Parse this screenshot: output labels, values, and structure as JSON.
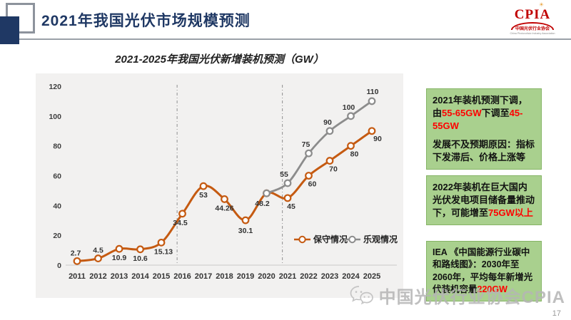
{
  "header": {
    "title": "2021年我国光伏市场规模预测",
    "logo": {
      "name": "CPIA",
      "cn": "中国光伏行业协会",
      "en": "China Photovoltaic Industry Association",
      "color": "#C00000"
    }
  },
  "chart_data": {
    "type": "line",
    "title": "2021-2025年我国光伏新增装机预测（GW）",
    "categories": [
      "2011",
      "2012",
      "2013",
      "2014",
      "2015",
      "2016",
      "2017",
      "2018",
      "2019",
      "2020",
      "2021",
      "2022",
      "2023",
      "2024",
      "2025"
    ],
    "series": [
      {
        "name": "保守情况",
        "color": "#C55A11",
        "values": [
          2.7,
          4.5,
          10.9,
          10.6,
          15.13,
          34.5,
          53,
          44.26,
          30.1,
          48.2,
          45,
          60,
          70,
          80,
          90
        ]
      },
      {
        "name": "乐观情况",
        "color": "#8C8C8C",
        "values": [
          null,
          null,
          null,
          null,
          null,
          null,
          null,
          null,
          null,
          48.2,
          55,
          75,
          90,
          100,
          110
        ]
      }
    ],
    "ylim": [
      0,
      120
    ],
    "yticks": [
      0,
      20,
      40,
      60,
      80,
      100,
      120
    ],
    "grid": false,
    "plot_bg": "#F2F1F0",
    "legend_position": "inside-bottom-right",
    "ref_lines_x": [
      2015.75,
      2020.75
    ],
    "marker": "open-circle"
  },
  "notes": [
    {
      "paragraphs": [
        [
          {
            "t": "2021年装机预测下调，由"
          },
          {
            "t": "55-65GW",
            "red": true
          },
          {
            "t": "下调至"
          },
          {
            "t": "45-55GW",
            "red": true
          }
        ],
        [
          {
            "t": "发展不及预期原因：指标下发滞后、价格上涨等"
          }
        ]
      ]
    },
    {
      "paragraphs": [
        [
          {
            "t": "2022年装机在巨大国内光伏发电项目储备量推动下，可能增至"
          },
          {
            "t": "75GW以上",
            "red": true
          }
        ]
      ]
    },
    {
      "paragraphs": [
        [
          {
            "t": "IEA 《中国能源行业碳中和路线图》：2030年至2060年，平均每年新增光伏装机容量"
          },
          {
            "t": "220GW",
            "red": true
          }
        ]
      ]
    }
  ],
  "footer": {
    "watermark": "中国光伏行业协会CPIA",
    "page_number": "17"
  },
  "colors": {
    "accent_navy": "#1F3864",
    "note_bg": "#A9D08E",
    "highlight_red": "#FF0000",
    "conservative_orange": "#C55A11",
    "optimistic_gray": "#8C8C8C"
  }
}
